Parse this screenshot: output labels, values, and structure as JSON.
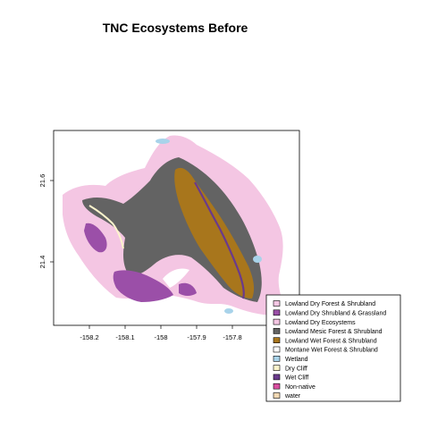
{
  "title": "TNC Ecosystems Before",
  "axes": {
    "x_ticks": [
      "-158.2",
      "-158.1",
      "-158",
      "-157.9",
      "-157.8"
    ],
    "y_ticks": [
      "21.6",
      "21.4"
    ]
  },
  "legend": {
    "placement": "bottom-right",
    "items": [
      {
        "label": "Lowland Dry Forest & Shrubland",
        "color": "#f4c6e3"
      },
      {
        "label": "Lowland Dry Shrubland & Grassland",
        "color": "#9b4fa8"
      },
      {
        "label": "Lowland Dry Ecosystems",
        "color": "#f4c6e3"
      },
      {
        "label": "Lowland Mesic Forest & Shrubland",
        "color": "#636363"
      },
      {
        "label": "Lowland Wet Forest & Shrubland",
        "color": "#a8761c"
      },
      {
        "label": "Montane Wet Forest & Shrubland",
        "color": "#ffffff"
      },
      {
        "label": "Wetland",
        "color": "#a8d3ea"
      },
      {
        "label": "Dry Cliff",
        "color": "#fdf5cc"
      },
      {
        "label": "Wet Cliff",
        "color": "#6a3a8c"
      },
      {
        "label": "Non-native",
        "color": "#d94fa0"
      },
      {
        "label": "water",
        "color": "#f2d9b4"
      }
    ]
  },
  "colors": {
    "lowland_dry": "#f4c6e3",
    "shrubland_grassland": "#9b4fa8",
    "mesic": "#636363",
    "wet_forest": "#a8761c",
    "wetland": "#a8d3ea",
    "dry_cliff": "#fdf5cc",
    "wet_cliff": "#6a3a8c"
  }
}
